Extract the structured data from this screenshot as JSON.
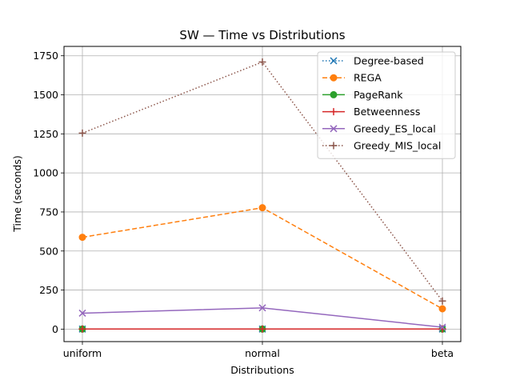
{
  "chart_data": {
    "type": "line",
    "title": "SW — Time vs Distributions",
    "xlabel": "Distributions",
    "ylabel": "Time (seconds)",
    "categories": [
      "uniform",
      "normal",
      "beta"
    ],
    "ylim": [
      -80,
      1810
    ],
    "yticks": [
      0,
      250,
      500,
      750,
      1000,
      1250,
      1500,
      1750
    ],
    "grid": true,
    "legend_position": "top-right",
    "series": [
      {
        "name": "Degree-based",
        "values": [
          0.5,
          0.5,
          0.5
        ],
        "color": "#1f77b4",
        "linestyle": "dotted",
        "marker": "x"
      },
      {
        "name": "REGA",
        "values": [
          588,
          777,
          130
        ],
        "color": "#ff7f0e",
        "linestyle": "dashed",
        "marker": "circle"
      },
      {
        "name": "PageRank",
        "values": [
          0.5,
          0.5,
          0.5
        ],
        "color": "#2ca02c",
        "linestyle": "solid",
        "marker": "circle"
      },
      {
        "name": "Betweenness",
        "values": [
          0.8,
          0.8,
          0.8
        ],
        "color": "#d62728",
        "linestyle": "solid",
        "marker": "plus"
      },
      {
        "name": "Greedy_ES_local",
        "values": [
          102,
          136,
          12
        ],
        "color": "#9467bd",
        "linestyle": "solid",
        "marker": "x"
      },
      {
        "name": "Greedy_MIS_local",
        "values": [
          1255,
          1710,
          180
        ],
        "color": "#8c564b",
        "linestyle": "dotted",
        "marker": "plus"
      }
    ]
  }
}
